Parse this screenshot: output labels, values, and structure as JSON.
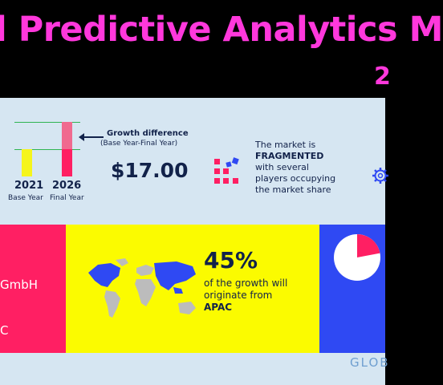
{
  "header": {
    "title": "l Predictive Analytics M",
    "year_fragment": "2"
  },
  "bar_comparison": {
    "bars": [
      {
        "year": "2021",
        "label": "Base Year",
        "color": "#f5f51c"
      },
      {
        "year": "2026",
        "label": "Final Year",
        "color": "#ff1f63",
        "growth_color": "#f06a8f"
      }
    ],
    "growth_label": "Growth difference",
    "growth_sub": "(Base Year-Final Year)",
    "growth_value": "$17.00"
  },
  "market_info": {
    "lines": [
      "The market is",
      "FRAGMENTED",
      "with several",
      "players occupying",
      "the market share"
    ],
    "icon": "fragmented-blocks-icon"
  },
  "vendors": [
    "GmbH",
    "C"
  ],
  "region": {
    "percent": "45%",
    "lines": [
      "of the growth will",
      "originate from",
      "APAC"
    ],
    "map_highlight_color": "#2f49f3",
    "map_base_color": "#bcbcbc"
  },
  "pie": {
    "highlight_fraction": 0.22,
    "highlight_color": "#ff1f63",
    "base_color": "#ffffff"
  },
  "footer": {
    "brand": "GLOB"
  },
  "colors": {
    "pink": "#ff1f63",
    "yellow": "#fbfb00",
    "blue": "#2f49f3",
    "navy": "#12224a",
    "title": "#ff38dc"
  }
}
